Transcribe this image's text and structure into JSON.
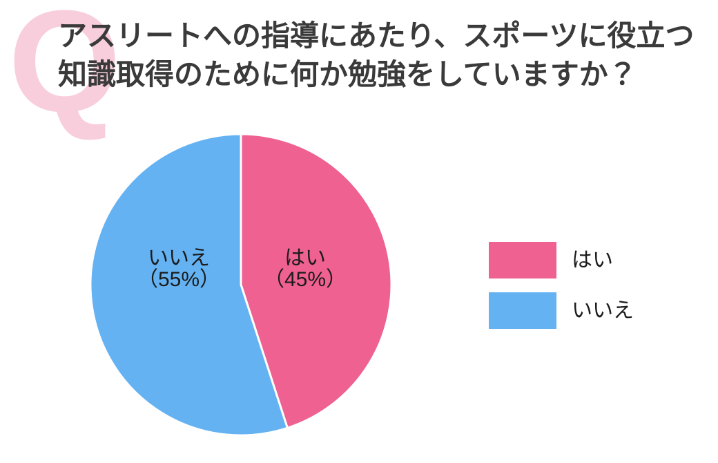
{
  "header": {
    "q_mark": "Q",
    "title_line1": "アスリートへの指導にあたり、スポーツに役立つ",
    "title_line2": "知識取得のために何か勉強をしていますか？"
  },
  "chart_data": {
    "type": "pie",
    "title": "アスリートへの指導にあたり、スポーツに役立つ知識取得のために何か勉強をしていますか？",
    "start_angle_deg": -90,
    "direction": "clockwise",
    "grid": false,
    "legend_position": "right",
    "slices": [
      {
        "label": "はい",
        "value": 45,
        "pct_label": "（45%）",
        "color": "#ee6190"
      },
      {
        "label": "いいえ",
        "value": 55,
        "pct_label": "（55%）",
        "color": "#64b2f2"
      }
    ]
  },
  "legend": {
    "items": [
      {
        "label": "はい",
        "color": "#ee6190"
      },
      {
        "label": "いいえ",
        "color": "#64b2f2"
      }
    ]
  },
  "colors": {
    "background": "#ffffff",
    "q_mark": "#f8cedd",
    "title_text": "#3a3a3a",
    "pie_label_text": "#1b1b1b",
    "legend_text": "#1b1b1b",
    "slice_divider": "#ffffff"
  }
}
